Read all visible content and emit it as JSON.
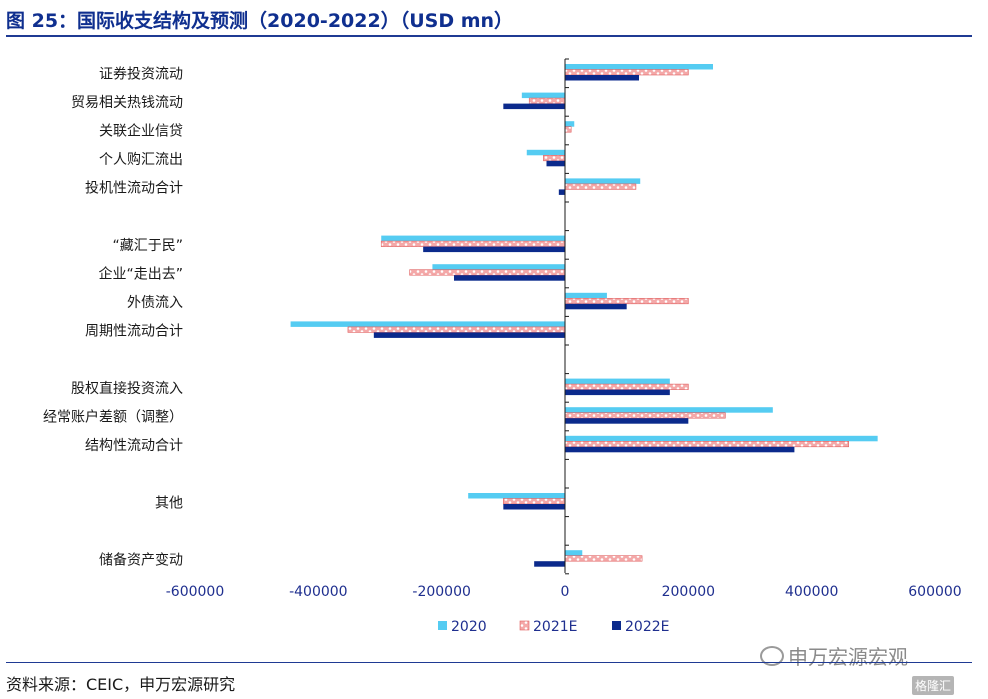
{
  "figure_title": "图 25：国际收支结构及预测（2020-2022）（USD mn）",
  "source": "资料来源：CEIC，申万宏源研究",
  "watermark": "申万宏源宏观",
  "watermark_small": "格隆汇",
  "colors": {
    "title": "#0f2f8f",
    "s2020": "#55ccf2",
    "s2021": "#f08080",
    "s2022": "#0b2a8c",
    "axis": "#1a1a1a"
  },
  "chart_data": {
    "type": "bar",
    "orientation": "horizontal",
    "categories": [
      "证券投资流动",
      "贸易相关热钱流动",
      "关联企业信贷",
      "个人购汇流出",
      "投机性流动合计",
      "",
      "“藏汇于民”",
      "企业“走出去”",
      "外债流入",
      "周期性流动合计",
      "",
      "股权直接投资流入",
      "经常账户差额（调整）",
      "结构性流动合计",
      "",
      "其他",
      "",
      "储备资产变动"
    ],
    "series": [
      {
        "name": "2020",
        "color": "#55ccf2",
        "values": [
          240000,
          -70000,
          15000,
          -62000,
          122000,
          null,
          -298000,
          -215000,
          68000,
          -445000,
          null,
          170000,
          337000,
          507000,
          null,
          -157000,
          null,
          28000
        ]
      },
      {
        "name": "2021E",
        "color": "#f08080",
        "values": [
          200000,
          -58000,
          10000,
          -35000,
          115000,
          null,
          -298000,
          -252000,
          200000,
          -352000,
          null,
          200000,
          260000,
          460000,
          null,
          -100000,
          null,
          125000
        ]
      },
      {
        "name": "2022E",
        "color": "#0b2a8c",
        "values": [
          120000,
          -100000,
          0,
          -30000,
          -10000,
          null,
          -230000,
          -180000,
          100000,
          -310000,
          null,
          170000,
          200000,
          372000,
          null,
          -100000,
          null,
          -50000
        ]
      }
    ],
    "xlim": [
      -600000,
      600000
    ],
    "xticks": [
      -600000,
      -400000,
      -200000,
      0,
      200000,
      400000,
      600000
    ],
    "xtick_labels": [
      "-600000",
      "-400000",
      "-200000",
      "0",
      "200000",
      "400000",
      "600000"
    ],
    "legend": [
      "2020",
      "2021E",
      "2022E"
    ],
    "legend_position": "bottom-center",
    "grid": false
  }
}
